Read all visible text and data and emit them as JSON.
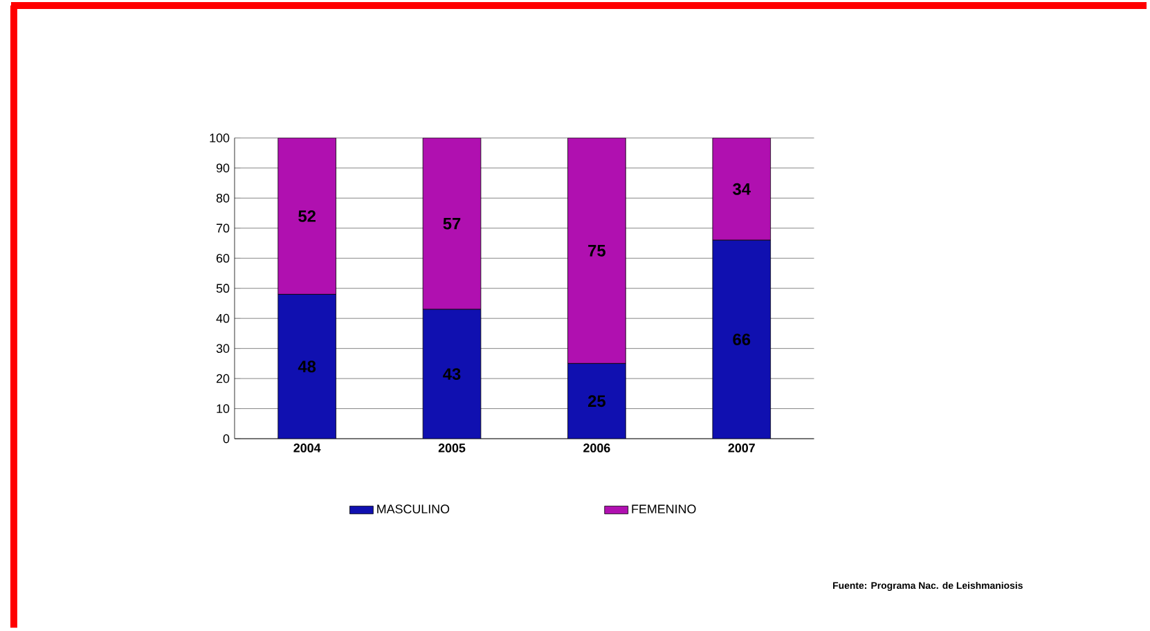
{
  "chart_data": {
    "type": "bar",
    "stacked": true,
    "categories": [
      "2004",
      "2005",
      "2006",
      "2007"
    ],
    "series": [
      {
        "name": "MASCULINO",
        "color": "#1010b0",
        "values": [
          48,
          43,
          25,
          66
        ]
      },
      {
        "name": "FEMENINO",
        "color": "#b010b0",
        "values": [
          52,
          57,
          75,
          34
        ]
      }
    ],
    "ylim": [
      0,
      100
    ],
    "yticks": [
      0,
      10,
      20,
      30,
      40,
      50,
      60,
      70,
      80,
      90,
      100
    ],
    "grid": "y",
    "legend": "bottom",
    "data_labels": true,
    "annotations": [
      "Fuente: Programa Nac. de Leishmaniosis"
    ]
  }
}
